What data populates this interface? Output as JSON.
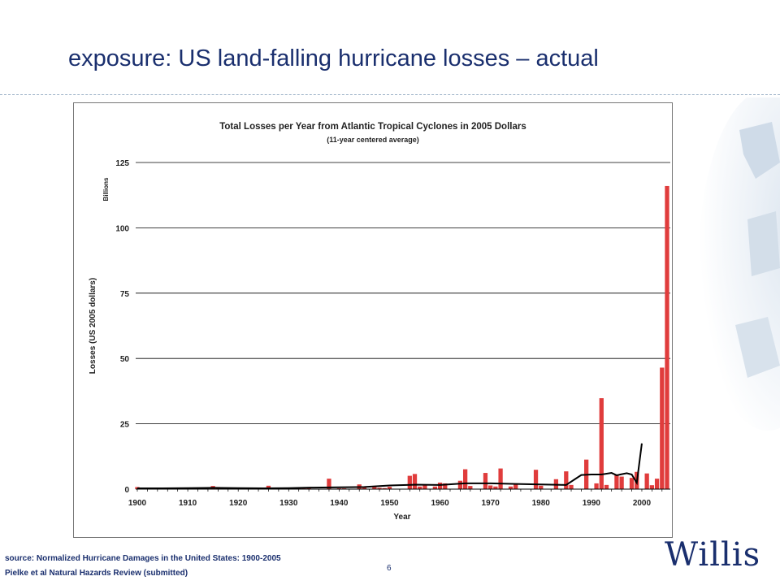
{
  "slide": {
    "title": "exposure:  US land-falling hurricane losses – actual",
    "source_line": "source: Normalized Hurricane Damages in the United States: 1900-2005",
    "reference_line": "Pielke et al Natural Hazards Review (submitted)",
    "page_number": "6",
    "logo_text": "Willis",
    "colors": {
      "title": "#1a2f6e",
      "bars": "#e03c3c",
      "average_line": "#000000"
    }
  },
  "chart_data": {
    "type": "bar",
    "title": "Total Losses per Year from Atlantic Tropical Cyclones in 2005 Dollars",
    "subtitle": "(11-year centered average)",
    "xlabel": "Year",
    "ylabel": "Losses (US 2005 dollars)",
    "yunit": "Billions",
    "ylim": [
      0,
      125
    ],
    "xlim": [
      1900,
      2005
    ],
    "yticks": [
      0,
      25,
      50,
      75,
      100,
      125
    ],
    "xticks": [
      1900,
      1910,
      1920,
      1930,
      1940,
      1950,
      1960,
      1970,
      1980,
      1990,
      2000
    ],
    "grid": "horizontal",
    "series": [
      {
        "type": "bar",
        "x": [
          1900,
          1903,
          1906,
          1909,
          1911,
          1913,
          1915,
          1916,
          1919,
          1921,
          1926,
          1928,
          1932,
          1933,
          1934,
          1938,
          1940,
          1941,
          1944,
          1945,
          1947,
          1948,
          1949,
          1950,
          1954,
          1955,
          1956,
          1957,
          1959,
          1960,
          1961,
          1964,
          1965,
          1966,
          1969,
          1970,
          1971,
          1972,
          1974,
          1975,
          1979,
          1980,
          1983,
          1985,
          1986,
          1989,
          1991,
          1992,
          1993,
          1995,
          1996,
          1998,
          1999,
          2001,
          2002,
          2003,
          2004,
          2005
        ],
        "values": [
          0.8,
          0.3,
          0.5,
          0.4,
          0.3,
          0.2,
          1.2,
          0.8,
          0.6,
          0.3,
          1.3,
          0.5,
          0.4,
          0.3,
          0.5,
          4.0,
          0.3,
          0.3,
          1.8,
          0.9,
          1.2,
          0.5,
          0.4,
          0.9,
          5.1,
          5.8,
          1.0,
          1.5,
          1.0,
          2.5,
          2.2,
          3.2,
          7.6,
          1.2,
          6.2,
          1.4,
          1.0,
          7.9,
          1.0,
          1.8,
          7.4,
          1.3,
          3.8,
          6.8,
          1.6,
          11.3,
          2.2,
          34.8,
          1.6,
          5.5,
          4.8,
          4.3,
          6.6,
          6.0,
          1.5,
          4.0,
          46.5,
          116.0
        ]
      },
      {
        "type": "line",
        "name": "11-year centered average",
        "x": [
          1900,
          1905,
          1910,
          1915,
          1920,
          1925,
          1930,
          1935,
          1940,
          1945,
          1950,
          1955,
          1960,
          1965,
          1970,
          1975,
          1980,
          1985,
          1988,
          1990,
          1992,
          1994,
          1995,
          1997,
          1998,
          1999,
          2000
        ],
        "values": [
          0.3,
          0.3,
          0.4,
          0.5,
          0.4,
          0.3,
          0.4,
          0.6,
          0.7,
          0.8,
          1.4,
          1.7,
          1.6,
          2.2,
          2.2,
          2.0,
          1.8,
          1.6,
          5.4,
          5.6,
          5.6,
          6.2,
          5.3,
          6.1,
          5.6,
          2.4,
          17.5
        ]
      }
    ]
  }
}
